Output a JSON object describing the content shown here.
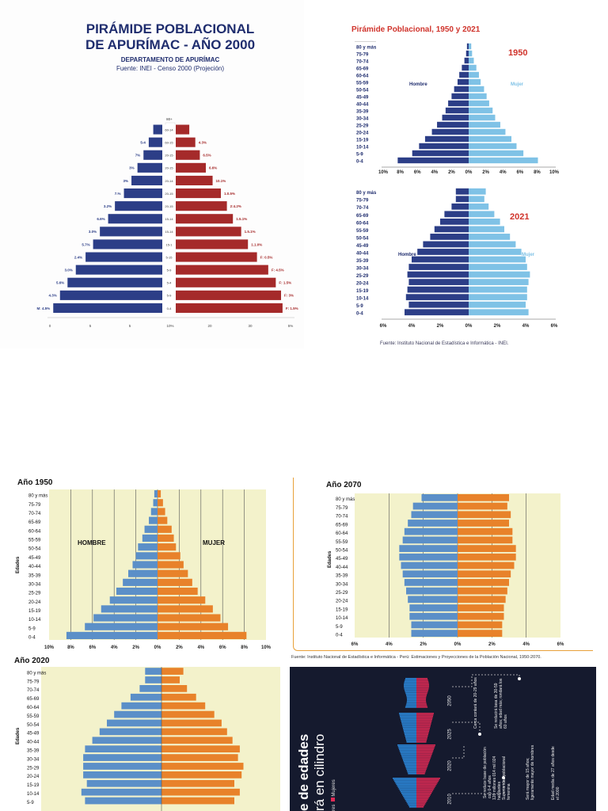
{
  "panels": {
    "apurimac": {
      "title_line1": "PIRÁMIDE POBLACIONAL",
      "title_line2": "DE APURÍMAC - AÑO 2000",
      "subtitle": "DEPARTAMENTO DE APURÍMAC",
      "source": "Fuente: INEI - Censo 2000 (Projeción)"
    },
    "peru_1950_2021": {
      "title": "Pirámide Poblacional, 1950 y 2021",
      "year_a": "1950",
      "year_b": "2021",
      "hombre": "Hombre",
      "mujer": "Mujer",
      "source": "Fuente: Instituto Nacional de Estadística e Informática - INEI."
    },
    "ano_1950": {
      "title": "Año 1950",
      "hombre": "HOMBRE",
      "mujer": "MUJER",
      "ylabel": "Edades"
    },
    "ano_2070": {
      "title": "Año 2070",
      "ylabel": "Edades"
    },
    "ano_2020": {
      "title": "Año 2020",
      "ylabel": "Edades"
    },
    "shared_source": "Fuente: Instituto Nacional de Estadística e Informática - Perú: Estimaciones y Proyecciones de la Población Nacional, 1950-2070.",
    "cylinder": {
      "title_line1": "e de edades",
      "title_line2": "rá en cilindro",
      "legend_mujeres": "Mujeres",
      "legend_hombres": "res",
      "years": [
        "2050",
        "2025",
        "2020",
        "2010"
      ],
      "notes": [
        "Cerca contará de 20-29 años",
        "Se reducirá tasa de 30-59 años; edad más; rondará los 60 años",
        "Se reduce base de población con 0-4 años",
        "126 millones 014 mil 024 habitantes",
        "Superioridad poblacional femenina",
        "Será mayor de 15 años; ligeramente mayor de hombres",
        "Edad media de 27 años desde el 2000"
      ]
    }
  },
  "chart_data": [
    {
      "type": "bar",
      "name": "apurimac_2000",
      "categories": [
        "0-4",
        "5-9",
        "10-14",
        "15-19",
        "20-24",
        "25-29",
        "30-34",
        "35-39",
        "40-44",
        "45-49",
        "50-54",
        "55-59",
        "60-64",
        "65-69",
        "70-74",
        "75-79",
        "80+"
      ],
      "category_labels": [
        "0-4",
        "5-9",
        "5-4",
        "5-9",
        "5-15",
        "15-1",
        "15-14",
        "15-14",
        "20-15",
        "20-15",
        "20-14",
        "20-15",
        "20-15",
        "60-15",
        "60-14",
        "80+",
        "80+"
      ],
      "series": [
        {
          "values": [
            14.5,
            13.6,
            12.6,
            11.5,
            10.2,
            9.2,
            8.3,
            7.2,
            6.3,
            5.1,
            4.1,
            3.3,
            2.5,
            1.8,
            1.2,
            0.8,
            0
          ]
        },
        {
          "values": [
            14.2,
            14.0,
            13.3,
            12.3,
            10.8,
            9.6,
            8.7,
            7.6,
            6.8,
            6.0,
            4.9,
            4.0,
            3.2,
            2.6,
            1.8,
            0.8,
            0
          ]
        }
      ],
      "male_labels": [
        "M: 4.5%",
        "4.3%",
        "5.6%",
        "3.0%",
        "2.4%",
        "5.7%",
        "3.0%",
        "6.6%",
        "3.2%",
        "7.%",
        "3%",
        "3%",
        "7%",
        "5-4",
        "",
        "",
        ""
      ],
      "female_labels": [
        "F: 1.5%",
        "F: 3%",
        "F: 1.5%",
        "F: 4.5%",
        "F: 0.5%",
        "1.1.0%",
        "1.5.1%",
        "1.5.1%",
        "2:4.2%",
        "1.0.5%",
        "10.1%",
        "6.6%",
        "6.5%",
        "4.3%",
        "",
        "",
        ""
      ],
      "x_ticks": [
        "0",
        "5",
        "5",
        "10%",
        "20",
        "30",
        "5%"
      ],
      "top_labels": [
        "80+",
        "80+"
      ]
    },
    {
      "type": "bar",
      "name": "peru_1950",
      "categories": [
        "0-4",
        "5-9",
        "10-14",
        "15-19",
        "20-24",
        "25-29",
        "30-34",
        "35-39",
        "40-44",
        "45-49",
        "50-54",
        "55-59",
        "60-64",
        "65-69",
        "70-74",
        "75-79",
        "80 y más"
      ],
      "series": [
        {
          "name": "Hombre",
          "values": [
            8.3,
            6.6,
            5.8,
            5.1,
            4.3,
            3.7,
            3.1,
            2.7,
            2.4,
            2.0,
            1.7,
            1.3,
            1.1,
            0.8,
            0.5,
            0.3,
            0.2
          ]
        },
        {
          "name": "Mujer",
          "values": [
            8.1,
            6.4,
            5.6,
            5.0,
            4.3,
            3.7,
            3.1,
            2.8,
            2.4,
            2.1,
            1.8,
            1.4,
            1.2,
            0.9,
            0.6,
            0.4,
            0.3
          ]
        }
      ],
      "x_ticks": [
        "10%",
        "8%",
        "6%",
        "4%",
        "2%",
        "0%",
        "2%",
        "4%",
        "6%",
        "8%",
        "10%"
      ],
      "xlim": [
        -10,
        10
      ]
    },
    {
      "type": "bar",
      "name": "peru_2021",
      "categories": [
        "0-4",
        "5-9",
        "10-14",
        "15-19",
        "20-24",
        "25-29",
        "30-34",
        "35-39",
        "40-44",
        "45-49",
        "50-54",
        "55-59",
        "60-64",
        "65-69",
        "70-74",
        "75-79",
        "80 y más"
      ],
      "series": [
        {
          "name": "Hombre",
          "values": [
            4.5,
            4.2,
            4.4,
            4.3,
            4.2,
            4.3,
            4.2,
            4.0,
            3.6,
            3.2,
            2.7,
            2.4,
            2.0,
            1.7,
            1.2,
            0.9,
            0.9
          ]
        },
        {
          "name": "Mujer",
          "values": [
            4.2,
            4.0,
            4.1,
            4.1,
            4.2,
            4.3,
            4.1,
            4.0,
            3.7,
            3.3,
            2.9,
            2.5,
            2.2,
            1.8,
            1.4,
            1.1,
            1.2
          ]
        }
      ],
      "x_ticks": [
        "6%",
        "4%",
        "2%",
        "0%",
        "2%",
        "4%",
        "6%"
      ],
      "xlim": [
        -6,
        6
      ]
    },
    {
      "type": "bar",
      "name": "ano_1950",
      "categories": [
        "0-4",
        "5-9",
        "10-14",
        "15-19",
        "20-24",
        "25-29",
        "30-34",
        "35-39",
        "40-44",
        "45-49",
        "50-54",
        "55-59",
        "60-64",
        "65-69",
        "70-74",
        "75-79",
        "80 y más"
      ],
      "series": [
        {
          "name": "HOMBRE",
          "values": [
            8.4,
            6.7,
            5.9,
            5.2,
            4.4,
            3.8,
            3.2,
            2.7,
            2.3,
            2.0,
            1.8,
            1.4,
            1.2,
            0.8,
            0.6,
            0.4,
            0.3
          ]
        },
        {
          "name": "MUJER",
          "values": [
            8.2,
            6.5,
            5.8,
            5.1,
            4.4,
            3.7,
            3.2,
            2.8,
            2.4,
            2.1,
            1.7,
            1.5,
            1.3,
            0.9,
            0.7,
            0.5,
            0.3
          ]
        }
      ],
      "x_ticks": [
        "10%",
        "8%",
        "6%",
        "4%",
        "2%",
        "0%",
        "2%",
        "4%",
        "6%",
        "8%",
        "10%"
      ],
      "xlim": [
        -10,
        10
      ]
    },
    {
      "type": "bar",
      "name": "ano_2070",
      "categories": [
        "0-4",
        "5-9",
        "10-14",
        "15-19",
        "20-24",
        "25-29",
        "30-34",
        "35-39",
        "40-44",
        "45-49",
        "50-54",
        "55-59",
        "60-64",
        "65-69",
        "70-74",
        "75-79",
        "80 y más"
      ],
      "series": [
        {
          "values": [
            2.7,
            2.7,
            2.8,
            2.8,
            2.9,
            3.0,
            3.1,
            3.2,
            3.3,
            3.4,
            3.4,
            3.2,
            3.1,
            2.9,
            2.7,
            2.6,
            2.1
          ]
        },
        {
          "values": [
            2.6,
            2.6,
            2.7,
            2.7,
            2.8,
            2.9,
            3.0,
            3.1,
            3.3,
            3.4,
            3.4,
            3.2,
            3.2,
            3.0,
            3.1,
            2.9,
            3.0
          ]
        }
      ],
      "x_ticks": [
        "6%",
        "4%",
        "2%",
        "0%",
        "2%",
        "4%",
        "6%"
      ],
      "xlim": [
        -6,
        6
      ]
    },
    {
      "type": "bar",
      "name": "ano_2020",
      "categories": [
        "5-9",
        "10-14",
        "15-19",
        "20-24",
        "25-29",
        "30-34",
        "35-39",
        "40-44",
        "45-49",
        "50-54",
        "55-59",
        "60-64",
        "65-69",
        "70-74",
        "75-79",
        "80 y más"
      ],
      "series": [
        {
          "values": [
            4.2,
            4.4,
            4.1,
            4.3,
            4.3,
            4.3,
            4.2,
            3.8,
            3.4,
            3.0,
            2.6,
            2.2,
            1.7,
            1.2,
            0.9,
            0.9
          ]
        },
        {
          "values": [
            4.0,
            4.3,
            4.0,
            4.4,
            4.5,
            4.2,
            4.3,
            3.9,
            3.6,
            3.3,
            2.9,
            2.4,
            1.9,
            1.4,
            1.0,
            1.2
          ]
        }
      ]
    }
  ]
}
